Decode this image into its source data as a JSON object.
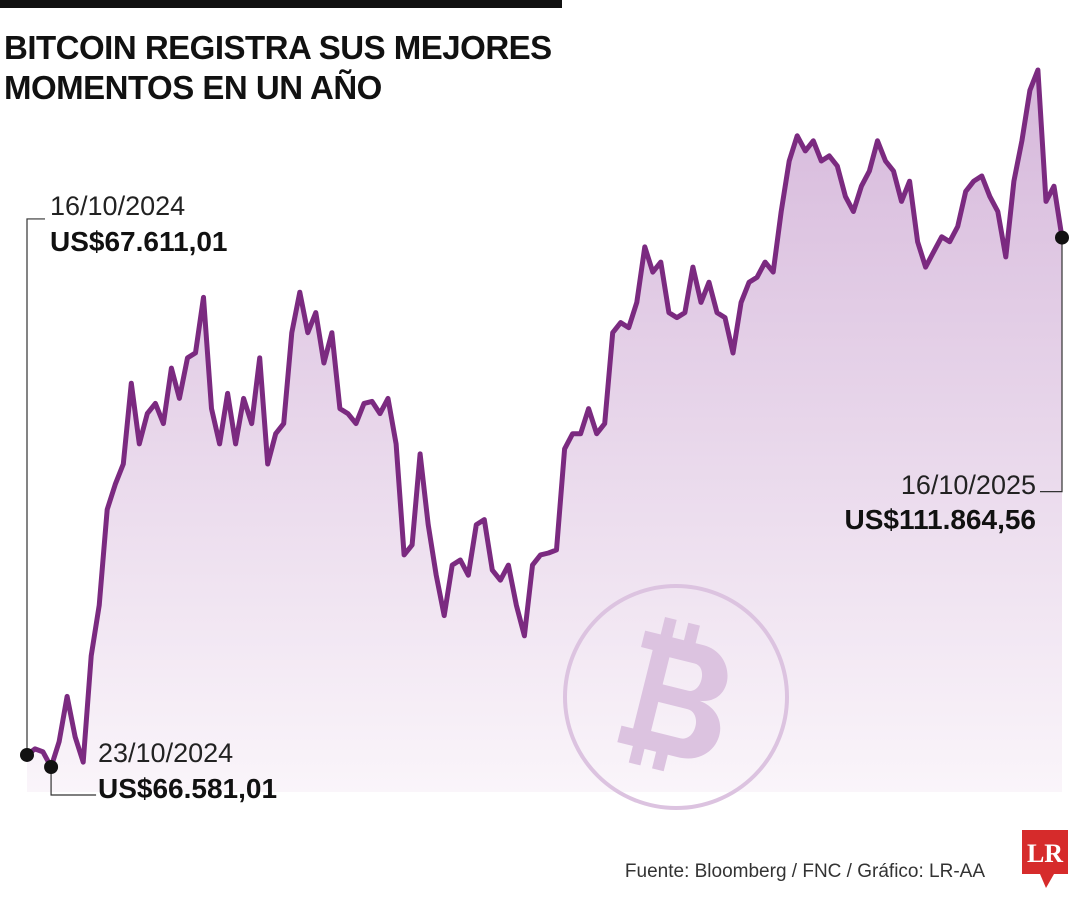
{
  "chart_data": {
    "type": "area-line",
    "title": "BITCOIN REGISTRA SUS MEJORES MOMENTOS EN UN AÑO",
    "color": "#7b2a80",
    "values": [
      67611.01,
      68130,
      67870,
      66581.01,
      68735,
      72620,
      69170,
      67000,
      76080,
      80400,
      88610,
      90770,
      92500,
      99410,
      94220,
      96810,
      97680,
      95950,
      100700,
      98110,
      101570,
      102000,
      106750,
      97240,
      94220,
      98540,
      94220,
      98110,
      95950,
      101570,
      92500,
      95090,
      95950,
      103730,
      107190,
      103730,
      105450,
      101140,
      103730,
      97240,
      96810,
      95950,
      97680,
      97850,
      96810,
      98110,
      94220,
      84720,
      85580,
      93360,
      87310,
      82990,
      79530,
      83850,
      84290,
      82990,
      87310,
      87740,
      83420,
      82560,
      83850,
      80400,
      77800,
      83850,
      84720,
      84890,
      85150,
      93790,
      95090,
      95090,
      97240,
      95090,
      95950,
      103730,
      104590,
      104160,
      106320,
      111070,
      108910,
      109770,
      105450,
      105020,
      105450,
      109340,
      106320,
      108050,
      105450,
      105020,
      101990,
      106320,
      108050,
      108480,
      109770,
      108910,
      114100,
      118420,
      120570,
      119280,
      120140,
      118420,
      118850,
      117990,
      115390,
      114100,
      116260,
      117560,
      120140,
      118420,
      117560,
      114960,
      116690,
      111510,
      109340,
      110640,
      111930,
      111510,
      112810,
      115820,
      116690,
      117130,
      115390,
      114100,
      110210,
      116690,
      120140,
      124460,
      126200,
      114960,
      116260,
      111864.56
    ],
    "annotations": [
      {
        "date": "16/10/2024",
        "label": "US$67.611,01",
        "value": 67611.01
      },
      {
        "date": "23/10/2024",
        "label": "US$66.581,01",
        "value": 66581.01
      },
      {
        "date": "16/10/2025",
        "label": "US$111.864,56",
        "value": 111864.56
      }
    ]
  },
  "source": "Fuente: Bloomberg / FNC / Gráfico: LR-AA",
  "logo": "LR"
}
